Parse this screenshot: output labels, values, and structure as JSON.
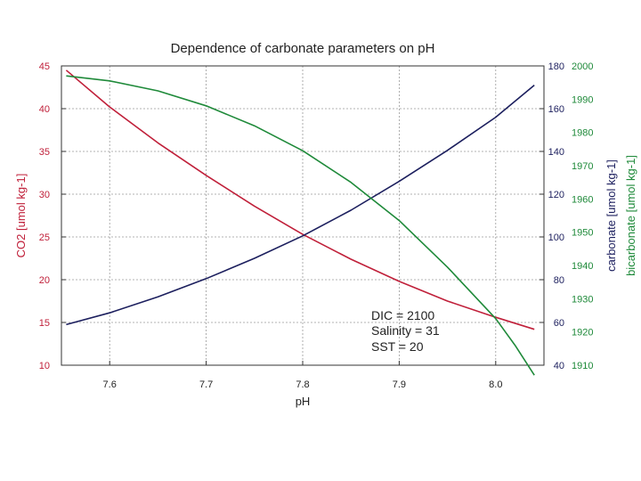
{
  "chart_data": {
    "type": "line",
    "title": "Dependence of carbonate parameters on pH",
    "xlabel": "pH",
    "xlim": [
      7.55,
      8.05
    ],
    "x_ticks": [
      7.6,
      7.7,
      7.8,
      7.9,
      8.0
    ],
    "x_tick_labels": [
      "7.6",
      "7.7",
      "7.8",
      "7.9",
      "8.0"
    ],
    "grid": true,
    "axes": {
      "left": {
        "label": "CO2 [umol kg-1]",
        "range": [
          10,
          45
        ],
        "ticks": [
          10,
          15,
          20,
          25,
          30,
          35,
          40,
          45
        ],
        "tick_labels": [
          "10",
          "15",
          "20",
          "25",
          "30",
          "35",
          "40",
          "45"
        ],
        "color": "#c0203a"
      },
      "right1": {
        "label": "carbonate [umol kg-1]",
        "range": [
          40,
          180
        ],
        "ticks": [
          40,
          60,
          80,
          100,
          120,
          140,
          160,
          180
        ],
        "tick_labels": [
          "40",
          "60",
          "80",
          "100",
          "120",
          "140",
          "160",
          "180"
        ],
        "color": "#1c1f5e"
      },
      "right2": {
        "label": "bicarbonate [umol kg-1]",
        "range": [
          1910,
          2000
        ],
        "ticks": [
          1910,
          1920,
          1930,
          1940,
          1950,
          1960,
          1970,
          1980,
          1990,
          2000
        ],
        "tick_labels": [
          "1910",
          "1920",
          "1930",
          "1940",
          "1950",
          "1960",
          "1970",
          "1980",
          "1990",
          "2000"
        ],
        "color": "#1f8a3a"
      }
    },
    "series": [
      {
        "axis": "left",
        "color": "#c0203a",
        "x": [
          7.555,
          7.6,
          7.65,
          7.7,
          7.75,
          7.8,
          7.85,
          7.9,
          7.95,
          8.0,
          8.04
        ],
        "y": [
          44.5,
          40.2,
          36.0,
          32.2,
          28.6,
          25.3,
          22.4,
          19.8,
          17.5,
          15.6,
          14.2
        ]
      },
      {
        "axis": "right1",
        "color": "#1c1f5e",
        "x": [
          7.555,
          7.6,
          7.65,
          7.7,
          7.75,
          7.8,
          7.85,
          7.9,
          7.95,
          8.0,
          8.04
        ],
        "y": [
          59.0,
          64.5,
          72.0,
          80.5,
          90.0,
          100.5,
          112.5,
          126.0,
          140.5,
          156.0,
          171.0
        ]
      },
      {
        "axis": "right2",
        "color": "#1f8a3a",
        "x": [
          7.555,
          7.6,
          7.65,
          7.7,
          7.75,
          7.8,
          7.85,
          7.9,
          7.95,
          8.0,
          8.02,
          8.04
        ],
        "y": [
          1997.0,
          1995.5,
          1992.5,
          1988.0,
          1982.0,
          1974.5,
          1965.0,
          1953.5,
          1939.5,
          1924.0,
          1916.0,
          1907.0
        ]
      }
    ],
    "annotations": [
      "DIC = 2100",
      "Salinity = 31",
      "SST = 20"
    ]
  }
}
